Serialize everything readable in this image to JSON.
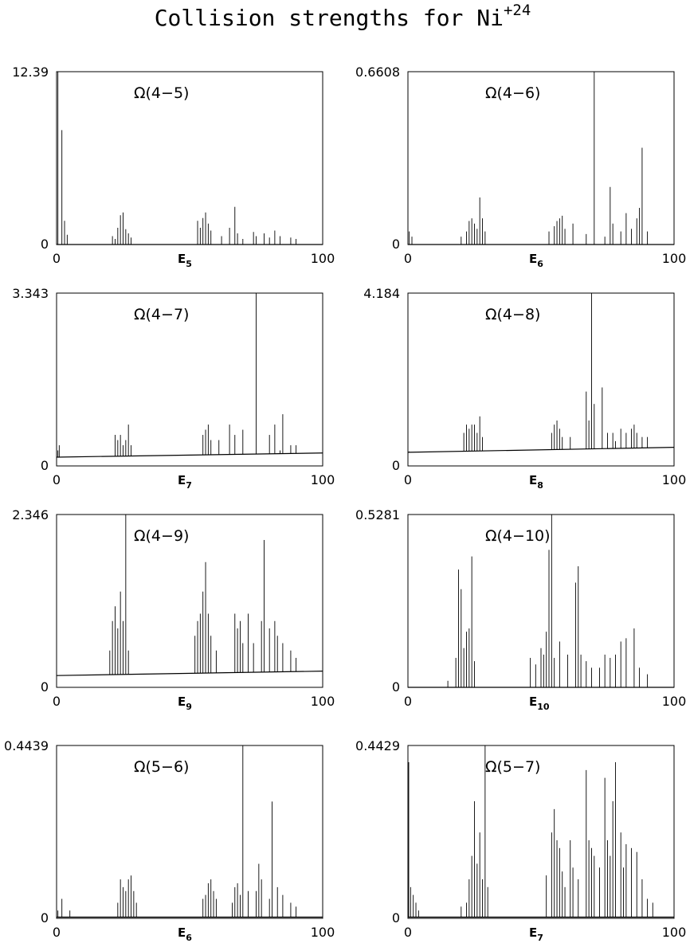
{
  "figure_title": {
    "text": "Collision strengths for Ni",
    "superscript": "+24"
  },
  "chart_data": [
    {
      "type": "line",
      "title": "Ω(4−5)",
      "xlabel": "E",
      "xlabel_sub": "5",
      "xlim": [
        0,
        100
      ],
      "ylim": [
        0,
        12.39
      ],
      "xticklabels": [
        "0",
        "100"
      ],
      "yticklabels": [
        "0",
        "12.39"
      ],
      "baseline": [
        0.0,
        0.0
      ],
      "spikes": [
        [
          0.5,
          12.39
        ],
        [
          2.0,
          8.2
        ],
        [
          3.0,
          1.7
        ],
        [
          4.0,
          0.7
        ],
        [
          21,
          0.6
        ],
        [
          22,
          0.4
        ],
        [
          23,
          1.2
        ],
        [
          24,
          2.1
        ],
        [
          25,
          2.3
        ],
        [
          26,
          1.1
        ],
        [
          27,
          0.8
        ],
        [
          28,
          0.5
        ],
        [
          53,
          1.7
        ],
        [
          54,
          1.2
        ],
        [
          55,
          1.9
        ],
        [
          56,
          2.3
        ],
        [
          57,
          1.5
        ],
        [
          58,
          1.0
        ],
        [
          62,
          0.6
        ],
        [
          65,
          1.2
        ],
        [
          67,
          2.7
        ],
        [
          68,
          0.8
        ],
        [
          70,
          0.4
        ],
        [
          74,
          0.9
        ],
        [
          75,
          0.6
        ],
        [
          78,
          0.8
        ],
        [
          80,
          0.5
        ],
        [
          82,
          1.0
        ],
        [
          84,
          0.6
        ],
        [
          88,
          0.5
        ],
        [
          90,
          0.4
        ]
      ]
    },
    {
      "type": "line",
      "title": "Ω(4−6)",
      "xlabel": "E",
      "xlabel_sub": "6",
      "xlim": [
        0,
        100
      ],
      "ylim": [
        0,
        0.6608
      ],
      "xticklabels": [
        "0",
        "100"
      ],
      "yticklabels": [
        "0",
        "0.6608"
      ],
      "baseline": [
        0.0,
        0.0
      ],
      "spikes": [
        [
          0.5,
          0.05
        ],
        [
          1.5,
          0.03
        ],
        [
          20,
          0.03
        ],
        [
          22,
          0.05
        ],
        [
          23,
          0.09
        ],
        [
          24,
          0.1
        ],
        [
          25,
          0.08
        ],
        [
          26,
          0.06
        ],
        [
          27,
          0.18
        ],
        [
          28,
          0.1
        ],
        [
          29,
          0.05
        ],
        [
          53,
          0.05
        ],
        [
          55,
          0.07
        ],
        [
          56,
          0.09
        ],
        [
          57,
          0.1
        ],
        [
          58,
          0.11
        ],
        [
          59,
          0.06
        ],
        [
          62,
          0.08
        ],
        [
          67,
          0.04
        ],
        [
          70,
          0.6608
        ],
        [
          74,
          0.03
        ],
        [
          76,
          0.22
        ],
        [
          77,
          0.08
        ],
        [
          80,
          0.05
        ],
        [
          82,
          0.12
        ],
        [
          84,
          0.06
        ],
        [
          86,
          0.1
        ],
        [
          87,
          0.14
        ],
        [
          88,
          0.37
        ],
        [
          90,
          0.05
        ]
      ]
    },
    {
      "type": "line",
      "title": "Ω(4−7)",
      "xlabel": "E",
      "xlabel_sub": "7",
      "xlim": [
        0,
        100
      ],
      "ylim": [
        0,
        3.343
      ],
      "xticklabels": [
        "0",
        "100"
      ],
      "yticklabels": [
        "0",
        "3.343"
      ],
      "baseline": [
        0.17,
        0.25
      ],
      "spikes": [
        [
          0.5,
          0.3
        ],
        [
          1.0,
          0.4
        ],
        [
          22,
          0.6
        ],
        [
          23,
          0.5
        ],
        [
          24,
          0.6
        ],
        [
          25,
          0.4
        ],
        [
          26,
          0.5
        ],
        [
          27,
          0.8
        ],
        [
          28,
          0.4
        ],
        [
          55,
          0.6
        ],
        [
          56,
          0.7
        ],
        [
          57,
          0.8
        ],
        [
          58,
          0.5
        ],
        [
          61,
          0.5
        ],
        [
          65,
          0.8
        ],
        [
          67,
          0.6
        ],
        [
          70,
          0.7
        ],
        [
          75,
          3.343
        ],
        [
          80,
          0.6
        ],
        [
          82,
          0.8
        ],
        [
          84,
          0.3
        ],
        [
          85,
          1.0
        ],
        [
          88,
          0.4
        ],
        [
          90,
          0.4
        ]
      ]
    },
    {
      "type": "line",
      "title": "Ω(4−8)",
      "xlabel": "E",
      "xlabel_sub": "8",
      "xlim": [
        0,
        100
      ],
      "ylim": [
        0,
        4.184
      ],
      "xticklabels": [
        "0",
        "100"
      ],
      "yticklabels": [
        "0",
        "4.184"
      ],
      "baseline": [
        0.33,
        0.45
      ],
      "spikes": [
        [
          0.5,
          0.35
        ],
        [
          21,
          0.8
        ],
        [
          22,
          1.0
        ],
        [
          23,
          0.9
        ],
        [
          24,
          1.0
        ],
        [
          25,
          1.0
        ],
        [
          26,
          0.8
        ],
        [
          27,
          1.2
        ],
        [
          28,
          0.7
        ],
        [
          54,
          0.8
        ],
        [
          55,
          1.0
        ],
        [
          56,
          1.1
        ],
        [
          57,
          0.9
        ],
        [
          58,
          0.7
        ],
        [
          61,
          0.7
        ],
        [
          67,
          1.8
        ],
        [
          68,
          1.1
        ],
        [
          69,
          4.184
        ],
        [
          70,
          1.5
        ],
        [
          73,
          1.9
        ],
        [
          75,
          0.8
        ],
        [
          77,
          0.8
        ],
        [
          78,
          0.6
        ],
        [
          80,
          0.9
        ],
        [
          82,
          0.8
        ],
        [
          84,
          0.9
        ],
        [
          85,
          1.0
        ],
        [
          86,
          0.8
        ],
        [
          88,
          0.7
        ],
        [
          90,
          0.7
        ]
      ]
    },
    {
      "type": "line",
      "title": "Ω(4−9)",
      "xlabel": "E",
      "xlabel_sub": "9",
      "xlim": [
        0,
        100
      ],
      "ylim": [
        0,
        2.346
      ],
      "xticklabels": [
        "0",
        "100"
      ],
      "yticklabels": [
        "0",
        "2.346"
      ],
      "baseline": [
        0.16,
        0.22
      ],
      "spikes": [
        [
          20,
          0.5
        ],
        [
          21,
          0.9
        ],
        [
          22,
          1.1
        ],
        [
          23,
          0.8
        ],
        [
          24,
          1.3
        ],
        [
          25,
          0.9
        ],
        [
          26,
          2.346
        ],
        [
          27,
          0.5
        ],
        [
          52,
          0.7
        ],
        [
          53,
          0.9
        ],
        [
          54,
          1.0
        ],
        [
          55,
          1.3
        ],
        [
          56,
          1.7
        ],
        [
          57,
          1.0
        ],
        [
          58,
          0.7
        ],
        [
          60,
          0.5
        ],
        [
          67,
          1.0
        ],
        [
          68,
          0.8
        ],
        [
          69,
          0.9
        ],
        [
          70,
          0.6
        ],
        [
          72,
          1.0
        ],
        [
          74,
          0.6
        ],
        [
          77,
          0.9
        ],
        [
          78,
          2.0
        ],
        [
          80,
          0.8
        ],
        [
          82,
          0.9
        ],
        [
          83,
          0.7
        ],
        [
          85,
          0.6
        ],
        [
          88,
          0.5
        ],
        [
          90,
          0.4
        ]
      ]
    },
    {
      "type": "line",
      "title": "Ω(4−10)",
      "xlabel": "E",
      "xlabel_sub": "10",
      "xlim": [
        0,
        100
      ],
      "ylim": [
        0,
        0.5281
      ],
      "xticklabels": [
        "0",
        "100"
      ],
      "yticklabels": [
        "0",
        "0.5281"
      ],
      "baseline": [
        0.0,
        0.0
      ],
      "spikes": [
        [
          15,
          0.02
        ],
        [
          18,
          0.09
        ],
        [
          19,
          0.36
        ],
        [
          20,
          0.3
        ],
        [
          21,
          0.12
        ],
        [
          22,
          0.17
        ],
        [
          23,
          0.18
        ],
        [
          24,
          0.4
        ],
        [
          25,
          0.08
        ],
        [
          46,
          0.09
        ],
        [
          48,
          0.07
        ],
        [
          50,
          0.12
        ],
        [
          51,
          0.1
        ],
        [
          52,
          0.17
        ],
        [
          53,
          0.42
        ],
        [
          54,
          0.5281
        ],
        [
          55,
          0.09
        ],
        [
          57,
          0.14
        ],
        [
          60,
          0.1
        ],
        [
          63,
          0.32
        ],
        [
          64,
          0.37
        ],
        [
          65,
          0.1
        ],
        [
          67,
          0.08
        ],
        [
          69,
          0.06
        ],
        [
          72,
          0.06
        ],
        [
          74,
          0.1
        ],
        [
          76,
          0.09
        ],
        [
          78,
          0.1
        ],
        [
          80,
          0.14
        ],
        [
          82,
          0.15
        ],
        [
          85,
          0.18
        ],
        [
          87,
          0.06
        ],
        [
          90,
          0.04
        ]
      ]
    },
    {
      "type": "line",
      "title": "Ω(5−6)",
      "xlabel": "E",
      "xlabel_sub": "6",
      "xlim": [
        0,
        100
      ],
      "ylim": [
        0,
        0.4439
      ],
      "xticklabels": [
        "0",
        "100"
      ],
      "yticklabels": [
        "0",
        "0.4439"
      ],
      "baseline": [
        0.003,
        0.003
      ],
      "spikes": [
        [
          0.5,
          0.02
        ],
        [
          2.0,
          0.05
        ],
        [
          5.0,
          0.02
        ],
        [
          23,
          0.04
        ],
        [
          24,
          0.1
        ],
        [
          25,
          0.08
        ],
        [
          26,
          0.07
        ],
        [
          27,
          0.1
        ],
        [
          28,
          0.11
        ],
        [
          29,
          0.07
        ],
        [
          30,
          0.04
        ],
        [
          55,
          0.05
        ],
        [
          56,
          0.06
        ],
        [
          57,
          0.09
        ],
        [
          58,
          0.1
        ],
        [
          59,
          0.07
        ],
        [
          60,
          0.05
        ],
        [
          66,
          0.04
        ],
        [
          67,
          0.08
        ],
        [
          68,
          0.09
        ],
        [
          69,
          0.06
        ],
        [
          70,
          0.4439
        ],
        [
          72,
          0.07
        ],
        [
          75,
          0.07
        ],
        [
          76,
          0.14
        ],
        [
          77,
          0.1
        ],
        [
          80,
          0.05
        ],
        [
          81,
          0.3
        ],
        [
          83,
          0.08
        ],
        [
          85,
          0.06
        ],
        [
          88,
          0.04
        ],
        [
          90,
          0.03
        ]
      ]
    },
    {
      "type": "line",
      "title": "Ω(5−7)",
      "xlabel": "E",
      "xlabel_sub": "7",
      "xlim": [
        0,
        100
      ],
      "ylim": [
        0,
        0.4429
      ],
      "xticklabels": [
        "0",
        "100"
      ],
      "yticklabels": [
        "0",
        "0.4429"
      ],
      "baseline": [
        0.003,
        0.003
      ],
      "spikes": [
        [
          0.3,
          0.4
        ],
        [
          1.0,
          0.08
        ],
        [
          2.0,
          0.06
        ],
        [
          3.0,
          0.04
        ],
        [
          4.0,
          0.02
        ],
        [
          20,
          0.03
        ],
        [
          22,
          0.04
        ],
        [
          23,
          0.1
        ],
        [
          24,
          0.16
        ],
        [
          25,
          0.3
        ],
        [
          26,
          0.14
        ],
        [
          27,
          0.22
        ],
        [
          28,
          0.1
        ],
        [
          29,
          0.4429
        ],
        [
          30,
          0.08
        ],
        [
          52,
          0.11
        ],
        [
          54,
          0.22
        ],
        [
          55,
          0.28
        ],
        [
          56,
          0.2
        ],
        [
          57,
          0.18
        ],
        [
          58,
          0.12
        ],
        [
          59,
          0.08
        ],
        [
          61,
          0.2
        ],
        [
          62,
          0.13
        ],
        [
          64,
          0.1
        ],
        [
          67,
          0.38
        ],
        [
          68,
          0.2
        ],
        [
          69,
          0.18
        ],
        [
          70,
          0.16
        ],
        [
          72,
          0.13
        ],
        [
          74,
          0.36
        ],
        [
          75,
          0.2
        ],
        [
          76,
          0.16
        ],
        [
          77,
          0.3
        ],
        [
          78,
          0.4
        ],
        [
          80,
          0.22
        ],
        [
          81,
          0.13
        ],
        [
          82,
          0.19
        ],
        [
          84,
          0.18
        ],
        [
          86,
          0.17
        ],
        [
          88,
          0.1
        ],
        [
          90,
          0.05
        ],
        [
          92,
          0.04
        ]
      ]
    }
  ]
}
